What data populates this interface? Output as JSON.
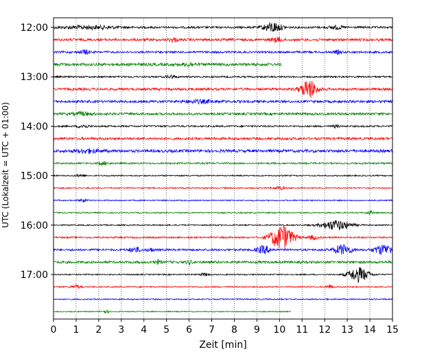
{
  "chart_data": {
    "type": "line",
    "title": "",
    "xlabel": "Zeit  [min]",
    "ylabel": "UTC (Lokalzeit = UTC + 01:00)",
    "xlim": [
      0,
      15
    ],
    "x_ticks": [
      "0",
      "1",
      "2",
      "3",
      "4",
      "5",
      "6",
      "7",
      "8",
      "9",
      "10",
      "11",
      "12",
      "13",
      "14",
      "15"
    ],
    "y_ticks": [
      "12:00",
      "13:00",
      "14:00",
      "15:00",
      "16:00",
      "17:00"
    ],
    "grid": "vertical-dotted",
    "colors": [
      "#000000",
      "#ff0000",
      "#0000ff",
      "#008000"
    ],
    "trace_interval_minutes": 15,
    "first_trace_start": "12:00",
    "traces": [
      {
        "start": "12:00",
        "color": "#000000",
        "end_min": 15,
        "amplitude": 0.25,
        "events": [
          {
            "t": 1.5,
            "amp": 0.35,
            "dur": 2.5
          },
          {
            "t": 9.7,
            "amp": 1.2,
            "dur": 0.8
          },
          {
            "t": 12.5,
            "amp": 0.4,
            "dur": 0.6
          }
        ]
      },
      {
        "start": "12:15",
        "color": "#ff0000",
        "end_min": 15,
        "amplitude": 0.3,
        "events": [
          {
            "t": 5.3,
            "amp": 0.4,
            "dur": 0.4
          },
          {
            "t": 9.9,
            "amp": 0.5,
            "dur": 0.5
          }
        ]
      },
      {
        "start": "12:30",
        "color": "#0000ff",
        "end_min": 15,
        "amplitude": 0.25,
        "events": [
          {
            "t": 1.4,
            "amp": 0.5,
            "dur": 0.4
          },
          {
            "t": 12.6,
            "amp": 0.4,
            "dur": 0.3
          }
        ]
      },
      {
        "start": "12:45",
        "color": "#008000",
        "end_min": 10.1,
        "amplitude": 0.35,
        "events": [
          {
            "t": 6.0,
            "amp": 0.4,
            "dur": 0.5
          }
        ]
      },
      {
        "start": "13:00",
        "color": "#000000",
        "end_min": 15,
        "amplitude": 0.2,
        "events": [
          {
            "t": 5.2,
            "amp": 0.4,
            "dur": 0.4
          }
        ]
      },
      {
        "start": "13:15",
        "color": "#ff0000",
        "end_min": 15,
        "amplitude": 0.3,
        "events": [
          {
            "t": 11.3,
            "amp": 2.2,
            "dur": 0.7
          }
        ]
      },
      {
        "start": "13:30",
        "color": "#0000ff",
        "end_min": 15,
        "amplitude": 0.3,
        "events": [
          {
            "t": 6.5,
            "amp": 0.3,
            "dur": 1.5
          }
        ]
      },
      {
        "start": "13:45",
        "color": "#008000",
        "end_min": 15,
        "amplitude": 0.3,
        "events": [
          {
            "t": 1.3,
            "amp": 0.35,
            "dur": 0.8
          }
        ]
      },
      {
        "start": "14:00",
        "color": "#000000",
        "end_min": 15,
        "amplitude": 0.2,
        "events": [
          {
            "t": 1.3,
            "amp": 0.4,
            "dur": 0.5
          },
          {
            "t": 12.5,
            "amp": 0.3,
            "dur": 0.3
          }
        ]
      },
      {
        "start": "14:15",
        "color": "#ff0000",
        "end_min": 15,
        "amplitude": 0.3,
        "events": []
      },
      {
        "start": "14:30",
        "color": "#0000ff",
        "end_min": 15,
        "amplitude": 0.35,
        "events": [
          {
            "t": 1.5,
            "amp": 0.4,
            "dur": 1.0
          }
        ]
      },
      {
        "start": "14:45",
        "color": "#008000",
        "end_min": 15,
        "amplitude": 0.2,
        "events": [
          {
            "t": 2.2,
            "amp": 0.4,
            "dur": 0.4
          }
        ]
      },
      {
        "start": "15:00",
        "color": "#000000",
        "end_min": 15,
        "amplitude": 0.15,
        "events": [
          {
            "t": 1.2,
            "amp": 0.3,
            "dur": 0.4
          }
        ]
      },
      {
        "start": "15:15",
        "color": "#ff0000",
        "end_min": 15,
        "amplitude": 0.15,
        "events": [
          {
            "t": 10.0,
            "amp": 0.35,
            "dur": 0.5
          }
        ]
      },
      {
        "start": "15:30",
        "color": "#0000ff",
        "end_min": 15,
        "amplitude": 0.15,
        "events": [
          {
            "t": 1.3,
            "amp": 0.35,
            "dur": 0.4
          }
        ]
      },
      {
        "start": "15:45",
        "color": "#008000",
        "end_min": 15,
        "amplitude": 0.15,
        "events": [
          {
            "t": 14.0,
            "amp": 0.4,
            "dur": 0.3
          }
        ]
      },
      {
        "start": "16:00",
        "color": "#000000",
        "end_min": 15,
        "amplitude": 0.15,
        "events": [
          {
            "t": 12.5,
            "amp": 1.2,
            "dur": 1.3
          }
        ]
      },
      {
        "start": "16:15",
        "color": "#ff0000",
        "end_min": 15,
        "amplitude": 0.2,
        "events": [
          {
            "t": 10.1,
            "amp": 3.0,
            "dur": 1.0
          },
          {
            "t": 11.5,
            "amp": 0.5,
            "dur": 0.4
          }
        ]
      },
      {
        "start": "16:30",
        "color": "#0000ff",
        "end_min": 15,
        "amplitude": 0.25,
        "events": [
          {
            "t": 3.6,
            "amp": 0.6,
            "dur": 0.5
          },
          {
            "t": 4.3,
            "amp": 0.4,
            "dur": 0.3
          },
          {
            "t": 9.3,
            "amp": 0.9,
            "dur": 0.6
          },
          {
            "t": 12.8,
            "amp": 1.2,
            "dur": 0.8
          },
          {
            "t": 14.6,
            "amp": 1.2,
            "dur": 0.8
          }
        ]
      },
      {
        "start": "16:45",
        "color": "#008000",
        "end_min": 15,
        "amplitude": 0.3,
        "events": [
          {
            "t": 4.6,
            "amp": 0.4,
            "dur": 0.3
          },
          {
            "t": 6.0,
            "amp": 0.35,
            "dur": 0.3
          }
        ]
      },
      {
        "start": "17:00",
        "color": "#000000",
        "end_min": 15,
        "amplitude": 0.15,
        "events": [
          {
            "t": 6.7,
            "amp": 0.35,
            "dur": 0.4
          },
          {
            "t": 13.5,
            "amp": 1.8,
            "dur": 0.9
          }
        ]
      },
      {
        "start": "17:15",
        "color": "#ff0000",
        "end_min": 15,
        "amplitude": 0.15,
        "events": [
          {
            "t": 1.0,
            "amp": 0.4,
            "dur": 0.5
          },
          {
            "t": 12.2,
            "amp": 0.5,
            "dur": 0.3
          }
        ]
      },
      {
        "start": "17:30",
        "color": "#0000ff",
        "end_min": 15,
        "amplitude": 0.15,
        "events": []
      },
      {
        "start": "17:45",
        "color": "#008000",
        "end_min": 10.5,
        "amplitude": 0.12,
        "events": [
          {
            "t": 2.3,
            "amp": 0.35,
            "dur": 0.3
          }
        ]
      }
    ]
  }
}
